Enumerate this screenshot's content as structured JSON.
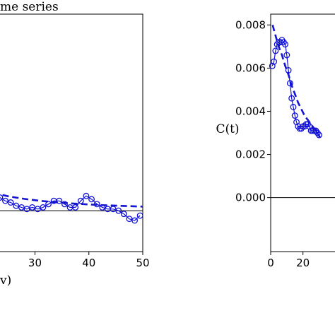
{
  "chart_data": [
    {
      "type": "line",
      "title": "me series",
      "xlabel": "v)",
      "ylabel": "",
      "xlim": [
        22.2,
        50
      ],
      "ylim": [
        -0.0025,
        0.012
      ],
      "x_tick_labels": [
        "30",
        "40",
        "50"
      ],
      "x_ticks": [
        30,
        40,
        50
      ],
      "y_ticks": [
        0
      ],
      "grid": false,
      "series": [
        {
          "style": "markers-line",
          "x": [
            22.5,
            23.5,
            24.5,
            25.5,
            26.5,
            27.5,
            28.5,
            29.5,
            30.5,
            31.5,
            32.5,
            33.5,
            34.5,
            35.5,
            36.5,
            37.5,
            38.5,
            39.5,
            40.5,
            41.5,
            42.5,
            43.5,
            44.5,
            45.5,
            46.5,
            47.5,
            48.5,
            49.5
          ],
          "y": [
            0.0011,
            0.0008,
            0.0006,
            0.0005,
            0.0003,
            0.0002,
            0.0001,
            0.0002,
            0.0001,
            0.0002,
            0.0004,
            0.0006,
            0.0006,
            0.0004,
            0.0002,
            0.0002,
            0.0006,
            0.0009,
            0.0007,
            0.0004,
            0.0002,
            0.0001,
            0.0001,
            0.0,
            -0.0002,
            -0.0005,
            -0.0006,
            -0.0003
          ]
        },
        {
          "style": "dashed",
          "x": [
            22.2,
            25,
            28,
            31,
            34,
            37,
            40,
            43,
            46,
            50
          ],
          "y": [
            0.0011,
            0.00088,
            0.00072,
            0.0006,
            0.00051,
            0.00044,
            0.00038,
            0.00033,
            0.00029,
            0.00025
          ]
        }
      ]
    },
    {
      "type": "line",
      "title": "",
      "xlabel": "",
      "ylabel": "C(t)",
      "xlim": [
        0,
        60
      ],
      "ylim": [
        -0.0025,
        0.0085
      ],
      "x_tick_labels": [
        "0",
        "20"
      ],
      "x_ticks": [
        0,
        20
      ],
      "y_tick_labels": [
        "0.000",
        "0.002",
        "0.004",
        "0.006",
        "0.008"
      ],
      "y_ticks": [
        0,
        0.002,
        0.004,
        0.006,
        0.008
      ],
      "grid": false,
      "series": [
        {
          "style": "markers-line",
          "x": [
            1,
            2,
            3,
            4,
            5,
            6,
            7,
            8,
            9,
            10,
            11,
            12,
            13,
            14,
            15,
            16,
            17,
            18,
            19,
            20,
            21,
            22,
            23,
            24,
            25,
            26,
            27,
            28,
            29,
            30
          ],
          "y": [
            0.0061,
            0.0063,
            0.0068,
            0.0071,
            0.0072,
            0.0072,
            0.0073,
            0.0072,
            0.0071,
            0.0066,
            0.0059,
            0.0053,
            0.0046,
            0.0042,
            0.0038,
            0.0035,
            0.0033,
            0.0032,
            0.0032,
            0.0033,
            0.0033,
            0.0034,
            0.0034,
            0.0033,
            0.0031,
            0.0031,
            0.0031,
            0.0031,
            0.003,
            0.0029
          ]
        },
        {
          "style": "dashed",
          "x": [
            1.2,
            3,
            5,
            7,
            9,
            11,
            13,
            15,
            17,
            19,
            21,
            23,
            25,
            27,
            29,
            30.5
          ],
          "y": [
            0.008,
            0.0075,
            0.007,
            0.0066,
            0.0061,
            0.0057,
            0.0052,
            0.0048,
            0.0044,
            0.0041,
            0.0038,
            0.0036,
            0.0034,
            0.0032,
            0.003,
            0.0028
          ]
        }
      ]
    }
  ]
}
